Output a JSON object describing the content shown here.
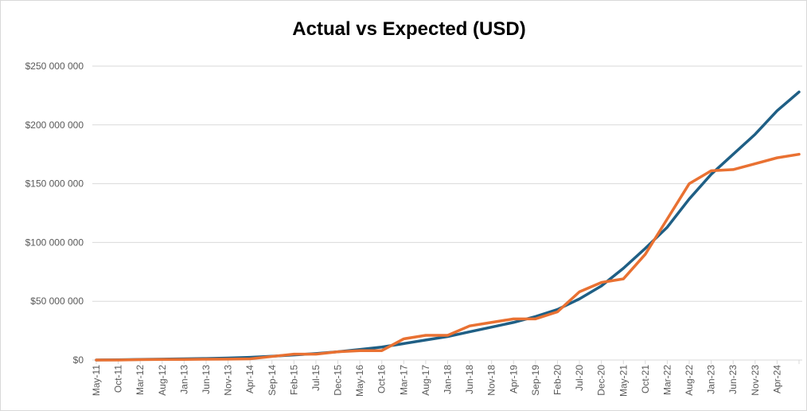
{
  "chart_data": {
    "type": "line",
    "title": "Actual vs Expected (USD)",
    "categories": [
      "May-11",
      "Oct-11",
      "Mar-12",
      "Aug-12",
      "Jan-13",
      "Jun-13",
      "Nov-13",
      "Apr-14",
      "Sep-14",
      "Feb-15",
      "Jul-15",
      "Dec-15",
      "May-16",
      "Oct-16",
      "Mar-17",
      "Aug-17",
      "Jan-18",
      "Jun-18",
      "Nov-18",
      "Apr-19",
      "Sep-19",
      "Feb-20",
      "Jul-20",
      "Dec-20",
      "May-21",
      "Oct-21",
      "Mar-22",
      "Aug-22",
      "Jan-23",
      "Jun-23",
      "Nov-23",
      "Apr-24",
      null
    ],
    "series": [
      {
        "color": "#1f5f85",
        "values": [
          0,
          200000,
          500000,
          800000,
          1000000,
          1300000,
          1700000,
          2300000,
          3200000,
          4300000,
          5500000,
          7000000,
          9000000,
          11000000,
          14000000,
          17000000,
          20000000,
          24000000,
          28000000,
          32000000,
          37000000,
          43000000,
          52000000,
          63000000,
          78000000,
          95000000,
          113000000,
          137000000,
          158000000,
          175000000,
          192000000,
          212000000,
          228000000
        ]
      },
      {
        "color": "#e97132",
        "values": [
          0,
          0,
          300000,
          500000,
          500000,
          700000,
          800000,
          1000000,
          3000000,
          5000000,
          5000000,
          7000000,
          8000000,
          8000000,
          18000000,
          21000000,
          21000000,
          29000000,
          32000000,
          35000000,
          35000000,
          41000000,
          58000000,
          66000000,
          69000000,
          90000000,
          120000000,
          150000000,
          161000000,
          162000000,
          167000000,
          172000000,
          175000000
        ]
      }
    ],
    "ylim": [
      0,
      250000000
    ],
    "yticks": [
      {
        "value": 0,
        "label": "$0"
      },
      {
        "value": 50000000,
        "label": "$50 000 000"
      },
      {
        "value": 100000000,
        "label": "$100 000 000"
      },
      {
        "value": 150000000,
        "label": "$150 000 000"
      },
      {
        "value": 200000000,
        "label": "$200 000 000"
      },
      {
        "value": 250000000,
        "label": "$250 000 000"
      }
    ],
    "grid": true
  }
}
